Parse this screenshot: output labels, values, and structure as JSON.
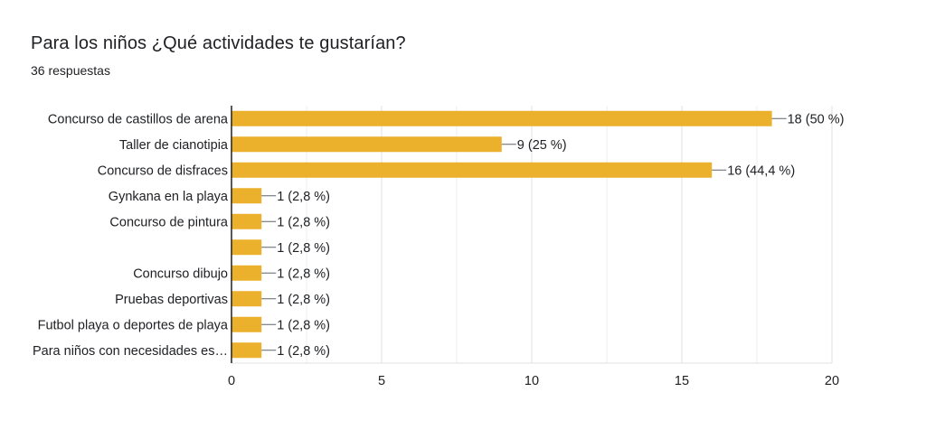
{
  "title": "Para los niños ¿Qué actividades te gustarían?",
  "subtitle": "36 respuestas",
  "chart_data": {
    "type": "bar",
    "orientation": "horizontal",
    "categories": [
      "Concurso de castillos de arena",
      "Taller de cianotipia",
      "Concurso de disfraces",
      "Gynkana en la playa",
      "Concurso de pintura",
      "",
      "Concurso dibujo",
      "Pruebas deportivas",
      "Futbol playa o deportes de playa",
      "Para niños con necesidades es…"
    ],
    "values": [
      18,
      9,
      16,
      1,
      1,
      1,
      1,
      1,
      1,
      1
    ],
    "data_labels": [
      "18 (50 %)",
      "9 (25 %)",
      "16 (44,4 %)",
      "1 (2,8 %)",
      "1 (2,8 %)",
      "1 (2,8 %)",
      "1 (2,8 %)",
      "1 (2,8 %)",
      "1 (2,8 %)",
      "1 (2,8 %)"
    ],
    "xlim": [
      0,
      20
    ],
    "xticks": [
      0,
      5,
      10,
      15,
      20
    ],
    "grid": true,
    "bar_color": "#ebb02c",
    "grid_color": "#e0e0e0",
    "axis_color": "#202124"
  }
}
